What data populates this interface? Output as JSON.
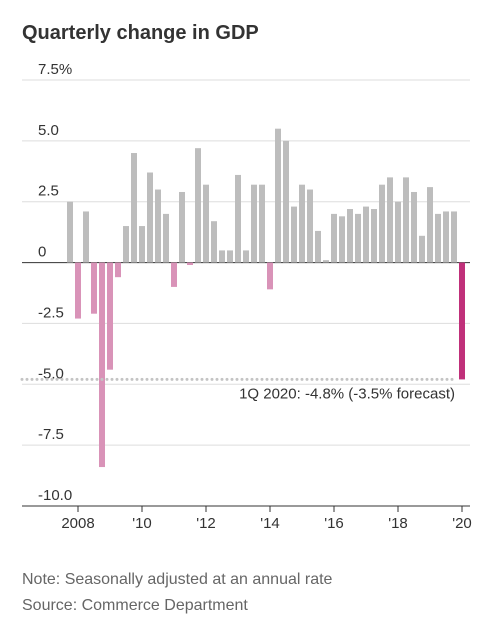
{
  "chart_data": {
    "type": "bar",
    "title": "Quarterly change in GDP",
    "notes": [
      "Note: Seasonally adjusted at an annual rate",
      "Source: Commerce Department"
    ],
    "annotation": "1Q 2020: -4.8% (-3.5% forecast)",
    "categories": [
      null,
      "2008",
      null,
      null,
      null,
      null,
      null,
      null,
      null,
      "'10",
      null,
      null,
      null,
      null,
      null,
      null,
      null,
      "'12",
      null,
      null,
      null,
      null,
      null,
      null,
      null,
      "'14",
      null,
      null,
      null,
      null,
      null,
      null,
      null,
      "'16",
      null,
      null,
      null,
      null,
      null,
      null,
      null,
      "'18",
      null,
      null,
      null,
      null,
      null,
      null,
      null,
      "'20"
    ],
    "values": [
      2.5,
      -2.3,
      2.1,
      -2.1,
      -8.4,
      -4.4,
      -0.6,
      1.5,
      4.5,
      1.5,
      3.7,
      3.0,
      2.0,
      -1.0,
      2.9,
      -0.1,
      4.7,
      3.2,
      1.7,
      0.5,
      0.5,
      3.6,
      0.5,
      3.2,
      3.2,
      -1.1,
      5.5,
      5.0,
      2.3,
      3.2,
      3.0,
      1.3,
      0.1,
      2.0,
      1.9,
      2.2,
      2.0,
      2.3,
      2.2,
      3.2,
      3.5,
      2.5,
      3.5,
      2.9,
      1.1,
      3.1,
      2.0,
      2.1,
      2.1,
      -4.8
    ],
    "color": "#bdbdbd",
    "negative_color": "#d993b8",
    "highlight_color": "#c0307a",
    "ylim": [
      -10,
      7.5
    ],
    "yticks": [
      {
        "value": 7.5,
        "label": "7.5%"
      },
      {
        "value": 5,
        "label": "5.0"
      },
      2.5,
      0,
      -2.5,
      {
        "value": -5,
        "label": "-5.0"
      },
      -7.5,
      {
        "value": -10,
        "label": "-10.0"
      }
    ],
    "grid": true
  }
}
